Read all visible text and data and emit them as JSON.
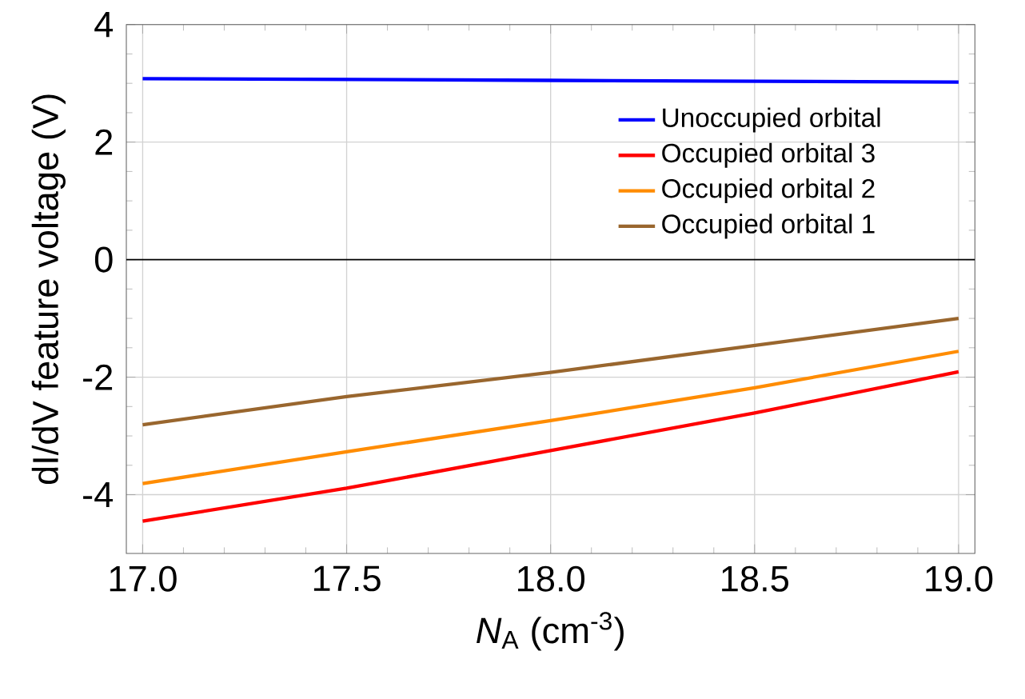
{
  "chart_data": {
    "type": "line",
    "xlabel": "*N*$_{A}$ (cm$^{-3}$)",
    "ylabel": "dI/dV feature voltage (V)",
    "xlim": [
      16.96,
      19.04
    ],
    "ylim": [
      -5,
      4
    ],
    "xticks": [
      {
        "value": 17,
        "label": "17.0"
      },
      {
        "value": 17.5,
        "label": "17.5"
      },
      {
        "value": 18,
        "label": "18.0"
      },
      {
        "value": 18.5,
        "label": "18.5"
      },
      {
        "value": 19,
        "label": "19.0"
      }
    ],
    "yticks": [
      -4,
      -2,
      0,
      2,
      4
    ],
    "grid": true,
    "legend": "right",
    "line_style": "solid",
    "marker": "none",
    "ref_lines": [
      {
        "axis": "y",
        "value": 0,
        "color": "#000000"
      }
    ],
    "series": [
      {
        "name": "Unoccupied orbital",
        "color": "#0000ff",
        "x": [
          17,
          18,
          19
        ],
        "values": [
          3.08,
          3.05,
          3.02
        ]
      },
      {
        "name": "Occupied orbital 3",
        "color": "#ff0000",
        "x": [
          17,
          17.5,
          18,
          18.5,
          19
        ],
        "values": [
          -4.45,
          -3.89,
          -3.25,
          -2.61,
          -1.91
        ]
      },
      {
        "name": "Occupied orbital 2",
        "color": "#ff8c00",
        "x": [
          17,
          17.5,
          18,
          18.5,
          19
        ],
        "values": [
          -3.81,
          -3.27,
          -2.74,
          -2.18,
          -1.56
        ]
      },
      {
        "name": "Occupied orbital 1",
        "color": "#99662e",
        "x": [
          17,
          17.5,
          18,
          18.5,
          19
        ],
        "values": [
          -2.81,
          -2.33,
          -1.92,
          -1.46,
          -1.0
        ]
      }
    ]
  }
}
